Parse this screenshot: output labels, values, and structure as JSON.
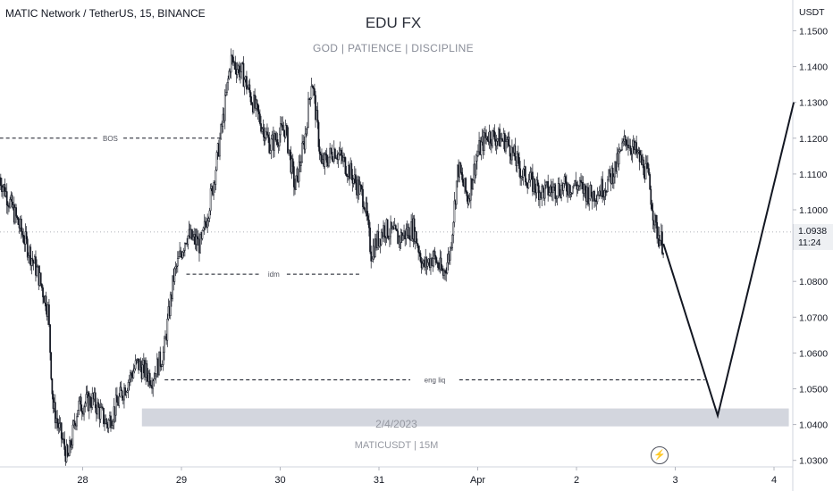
{
  "symbol_label": "MATIC Network / TetherUS, 15, BINANCE",
  "watermark": {
    "title": "EDU FX",
    "subtitle": "GOD  |  PATIENCE  |  DISCIPLINE",
    "date": "2/4/2023",
    "ticker": "MATICUSDT | 15M"
  },
  "price_axis": {
    "currency": "USDT"
  },
  "current_price": {
    "value": "1.0938",
    "countdown": "11:24"
  },
  "icons": {
    "replay": "lightning-bolt-icon"
  },
  "colors": {
    "candle": "#131722",
    "annotation_line": "#131722",
    "zone_fill": "#d1d4dc",
    "grid_text": "#131722"
  },
  "chart_data": {
    "type": "candlestick",
    "title": "",
    "xlabel": "",
    "ylabel": "",
    "ylim": [
      1.025,
      1.155
    ],
    "y_ticks": [
      "1.1500",
      "1.1400",
      "1.1300",
      "1.1200",
      "1.1100",
      "1.1000",
      "1.0900",
      "1.0800",
      "1.0700",
      "1.0600",
      "1.0500",
      "1.0400",
      "1.0300"
    ],
    "x_ticks": [
      {
        "label": "28",
        "day": 28
      },
      {
        "label": "29",
        "day": 29
      },
      {
        "label": "30",
        "day": 30
      },
      {
        "label": "31",
        "day": 31
      },
      {
        "label": "Apr",
        "day": 32
      },
      {
        "label": "2",
        "day": 33
      },
      {
        "label": "3",
        "day": 34
      },
      {
        "label": "4",
        "day": 35
      }
    ],
    "xlim": [
      27.16,
      35.2
    ],
    "price_path": [
      [
        27.16,
        1.109
      ],
      [
        27.35,
        1.096
      ],
      [
        27.55,
        1.082
      ],
      [
        27.65,
        1.072
      ],
      [
        27.7,
        1.045
      ],
      [
        27.85,
        1.03
      ],
      [
        27.95,
        1.045
      ],
      [
        28.1,
        1.047
      ],
      [
        28.25,
        1.04
      ],
      [
        28.4,
        1.049
      ],
      [
        28.55,
        1.057
      ],
      [
        28.7,
        1.053
      ],
      [
        28.82,
        1.06
      ],
      [
        28.92,
        1.081
      ],
      [
        29.05,
        1.093
      ],
      [
        29.2,
        1.09
      ],
      [
        29.32,
        1.107
      ],
      [
        29.42,
        1.125
      ],
      [
        29.5,
        1.142
      ],
      [
        29.62,
        1.138
      ],
      [
        29.75,
        1.128
      ],
      [
        29.9,
        1.118
      ],
      [
        30.05,
        1.123
      ],
      [
        30.15,
        1.106
      ],
      [
        30.25,
        1.12
      ],
      [
        30.32,
        1.137
      ],
      [
        30.42,
        1.112
      ],
      [
        30.55,
        1.117
      ],
      [
        30.7,
        1.111
      ],
      [
        30.85,
        1.103
      ],
      [
        30.92,
        1.088
      ],
      [
        31.05,
        1.095
      ],
      [
        31.2,
        1.092
      ],
      [
        31.35,
        1.095
      ],
      [
        31.45,
        1.084
      ],
      [
        31.55,
        1.087
      ],
      [
        31.65,
        1.082
      ],
      [
        31.72,
        1.088
      ],
      [
        31.8,
        1.112
      ],
      [
        31.9,
        1.103
      ],
      [
        32.0,
        1.116
      ],
      [
        32.1,
        1.121
      ],
      [
        32.2,
        1.12
      ],
      [
        32.3,
        1.119
      ],
      [
        32.45,
        1.11
      ],
      [
        32.65,
        1.105
      ],
      [
        32.8,
        1.106
      ],
      [
        33.0,
        1.107
      ],
      [
        33.15,
        1.104
      ],
      [
        33.3,
        1.107
      ],
      [
        33.4,
        1.112
      ],
      [
        33.5,
        1.12
      ],
      [
        33.6,
        1.116
      ],
      [
        33.72,
        1.11
      ],
      [
        33.8,
        1.095
      ],
      [
        33.88,
        1.09
      ]
    ],
    "levels": [
      {
        "label": "BOS",
        "price": 1.12,
        "x_start": 27.16,
        "x_end": 29.4
      },
      {
        "label": "idm",
        "price": 1.082,
        "x_start": 29.05,
        "x_end": 30.82
      },
      {
        "label": "eng liq",
        "price": 1.0525,
        "x_start": 28.83,
        "x_end": 34.3
      }
    ],
    "zone": {
      "x_start": 28.6,
      "x_end": 35.15,
      "price_top": 1.0445,
      "price_bottom": 1.0395
    },
    "projection": [
      [
        33.88,
        1.0905
      ],
      [
        34.43,
        1.0425
      ],
      [
        35.2,
        1.13
      ]
    ],
    "last_price": 1.0938
  }
}
